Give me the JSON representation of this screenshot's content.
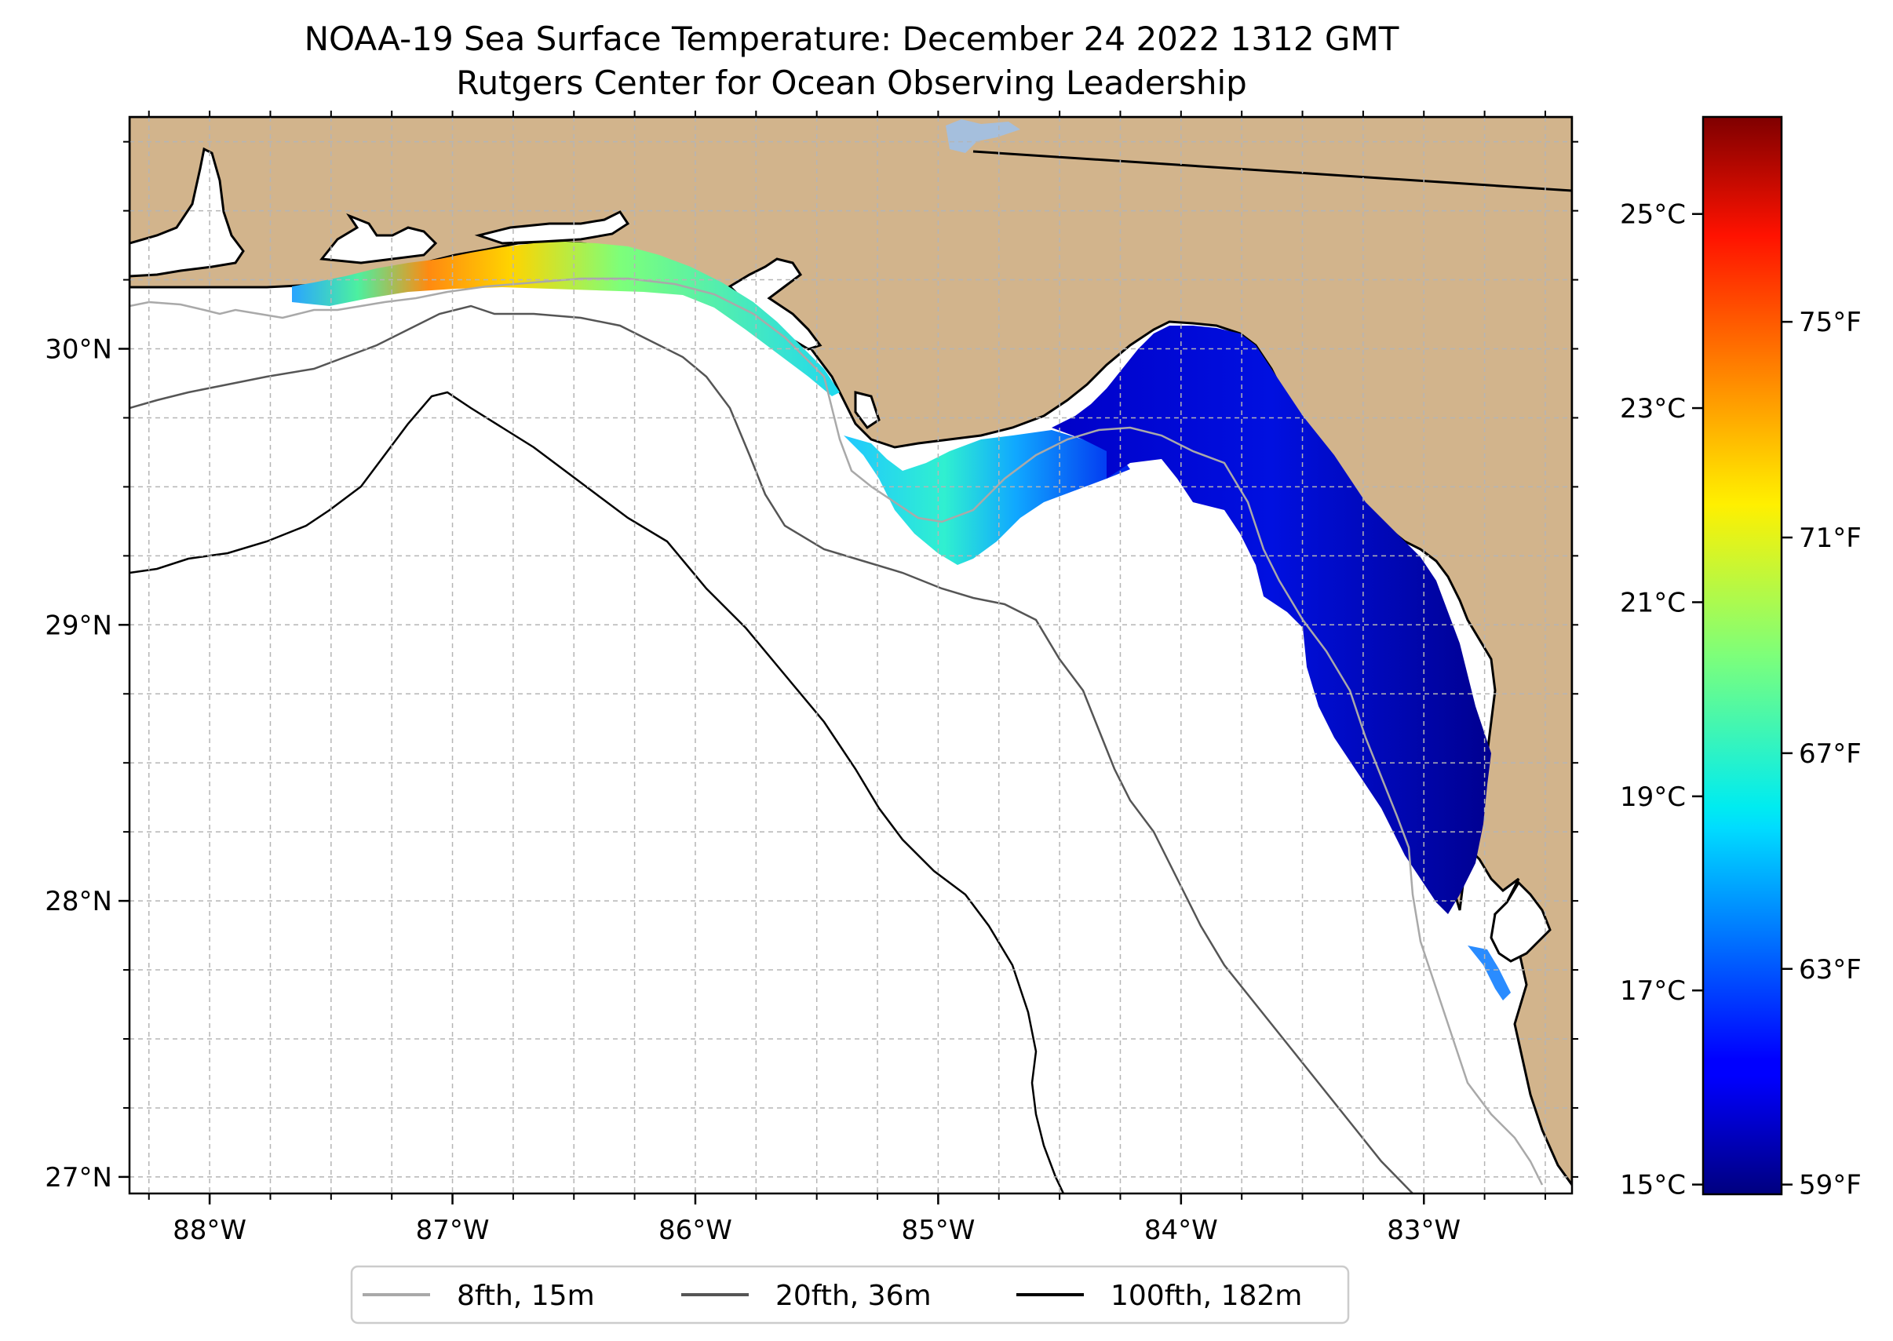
{
  "title": {
    "line1": "NOAA-19 Sea Surface Temperature: December 24 2022 1312 GMT",
    "line2": "Rutgers Center for Ocean Observing Leadership"
  },
  "map": {
    "lon_range": [
      -88.33,
      -82.39
    ],
    "lat_range": [
      26.94,
      30.84
    ],
    "lon_ticks": [
      {
        "value": -88,
        "label": "88°W"
      },
      {
        "value": -87,
        "label": "87°W"
      },
      {
        "value": -86,
        "label": "86°W"
      },
      {
        "value": -85,
        "label": "85°W"
      },
      {
        "value": -84,
        "label": "84°W"
      },
      {
        "value": -83,
        "label": "83°W"
      }
    ],
    "lat_ticks": [
      {
        "value": 30,
        "label": "30°N"
      },
      {
        "value": 29,
        "label": "29°N"
      },
      {
        "value": 28,
        "label": "28°N"
      },
      {
        "value": 27,
        "label": "27°N"
      }
    ],
    "minor_grid_step_deg": 0.25,
    "land_color": "#d2b48c",
    "grid_color": "#b5b5b5"
  },
  "colorbar": {
    "colormap": "jet",
    "celsius_range": [
      14.9,
      26.0
    ],
    "celsius_ticks": [
      {
        "value": 15,
        "label": "15°C"
      },
      {
        "value": 17,
        "label": "17°C"
      },
      {
        "value": 19,
        "label": "19°C"
      },
      {
        "value": 21,
        "label": "21°C"
      },
      {
        "value": 23,
        "label": "23°C"
      },
      {
        "value": 25,
        "label": "25°C"
      }
    ],
    "fahrenheit_ticks": [
      {
        "value": 59,
        "label": "59°F"
      },
      {
        "value": 63,
        "label": "63°F"
      },
      {
        "value": 67,
        "label": "67°F"
      },
      {
        "value": 71,
        "label": "71°F"
      },
      {
        "value": 75,
        "label": "75°F"
      }
    ]
  },
  "legend": {
    "items": [
      {
        "label": "8fth, 15m",
        "color": "#a9a9a9"
      },
      {
        "label": "20fth, 36m",
        "color": "#555555"
      },
      {
        "label": "100fth, 182m",
        "color": "#000000"
      }
    ]
  }
}
